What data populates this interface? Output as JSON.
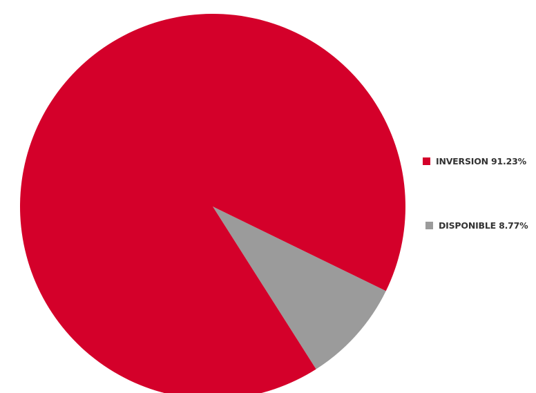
{
  "chart_data": {
    "type": "pie",
    "title": "",
    "slices": [
      {
        "label": "INVERSION",
        "value": 91.23,
        "value_label": "91.23%",
        "color": "#d4002a"
      },
      {
        "label": "DISPONIBLE",
        "value": 8.77,
        "value_label": "8.77%",
        "color": "#9b9b9b"
      }
    ],
    "legend": {
      "placement": "right",
      "entries": [
        "INVERSION 91.23%",
        "DISPONIBLE 8.77%"
      ]
    }
  }
}
